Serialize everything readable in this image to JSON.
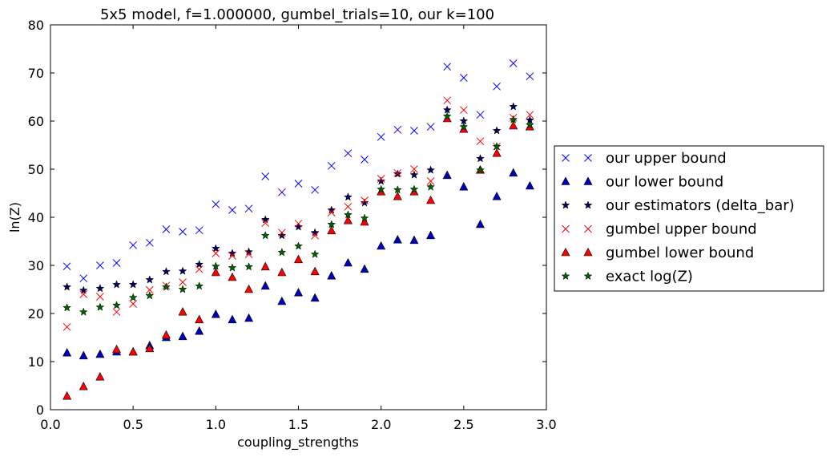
{
  "chart_data": {
    "type": "scatter",
    "title": "5x5 model, f=1.000000, gumbel_trials=10, our k=100",
    "xlabel": "coupling_strengths",
    "ylabel": "ln(Z)",
    "xlim": [
      0.0,
      3.0
    ],
    "ylim": [
      0,
      80
    ],
    "xticks": [
      "0.0",
      "0.5",
      "1.0",
      "1.5",
      "2.0",
      "2.5",
      "3.0"
    ],
    "yticks": [
      "0",
      "10",
      "20",
      "30",
      "40",
      "50",
      "60",
      "70",
      "80"
    ],
    "grid": false,
    "legend_position": "right, outside plot",
    "x": [
      0.1,
      0.2,
      0.3,
      0.4,
      0.5,
      0.6,
      0.7,
      0.8,
      0.9,
      1.0,
      1.1,
      1.2,
      1.3,
      1.4,
      1.5,
      1.6,
      1.7,
      1.8,
      1.9,
      2.0,
      2.1,
      2.2,
      2.3,
      2.4,
      2.5,
      2.6,
      2.7,
      2.8,
      2.9
    ],
    "series": [
      {
        "name": "our upper bound",
        "marker": "x",
        "color": "#0000ff",
        "values": [
          29.8,
          27.3,
          30.0,
          30.5,
          34.2,
          34.7,
          37.5,
          37.0,
          37.3,
          42.7,
          41.5,
          41.8,
          48.5,
          45.2,
          47.0,
          45.7,
          50.7,
          53.3,
          52.0,
          56.7,
          58.2,
          58.0,
          58.8,
          71.3,
          69.0,
          61.3,
          67.2,
          72.0,
          69.3
        ]
      },
      {
        "name": "our lower bound",
        "marker": "triangle",
        "color": "#0000bf",
        "values": [
          11.8,
          11.2,
          11.5,
          12.0,
          12.0,
          13.3,
          15.0,
          15.2,
          16.3,
          19.8,
          18.7,
          19.0,
          25.7,
          22.5,
          24.3,
          23.2,
          27.8,
          30.5,
          29.2,
          34.0,
          35.3,
          35.2,
          36.2,
          48.7,
          46.3,
          38.5,
          44.3,
          49.2,
          46.5
        ]
      },
      {
        "name": "our estimators (delta_bar)",
        "marker": "star",
        "color": "#00005f",
        "values": [
          25.5,
          24.8,
          25.2,
          26.0,
          26.0,
          27.0,
          28.7,
          28.8,
          30.2,
          33.5,
          32.5,
          32.8,
          39.5,
          36.2,
          38.0,
          36.8,
          41.5,
          44.2,
          43.0,
          47.5,
          49.0,
          48.8,
          49.8,
          62.3,
          60.0,
          52.2,
          58.0,
          63.0,
          60.2
        ]
      },
      {
        "name": "gumbel upper bound",
        "marker": "x",
        "color": "#ff0000",
        "values": [
          17.2,
          24.0,
          23.5,
          20.3,
          22.0,
          24.9,
          25.8,
          26.5,
          29.2,
          32.5,
          32.0,
          32.3,
          38.8,
          36.8,
          38.7,
          36.2,
          41.0,
          42.2,
          43.5,
          48.0,
          49.2,
          50.0,
          47.5,
          64.3,
          62.3,
          55.8,
          54.7,
          60.7,
          61.3
        ]
      },
      {
        "name": "gumbel lower bound",
        "marker": "triangle",
        "color": "#ff0000",
        "values": [
          2.8,
          4.8,
          6.8,
          12.5,
          12.0,
          12.7,
          15.5,
          20.3,
          18.7,
          28.5,
          27.5,
          25.0,
          29.7,
          28.5,
          31.2,
          28.7,
          37.2,
          39.3,
          39.0,
          45.3,
          44.3,
          45.3,
          43.5,
          60.5,
          58.3,
          49.8,
          53.3,
          59.0,
          58.8
        ]
      },
      {
        "name": "exact log(Z)",
        "marker": "star",
        "color": "#005f00",
        "values": [
          21.2,
          20.3,
          21.3,
          21.7,
          23.3,
          23.7,
          25.5,
          25.0,
          25.7,
          29.8,
          29.5,
          29.7,
          36.2,
          32.7,
          34.0,
          32.3,
          38.5,
          40.5,
          39.8,
          45.8,
          45.7,
          45.8,
          46.3,
          61.0,
          58.8,
          49.8,
          54.7,
          60.3,
          59.2
        ]
      }
    ]
  }
}
